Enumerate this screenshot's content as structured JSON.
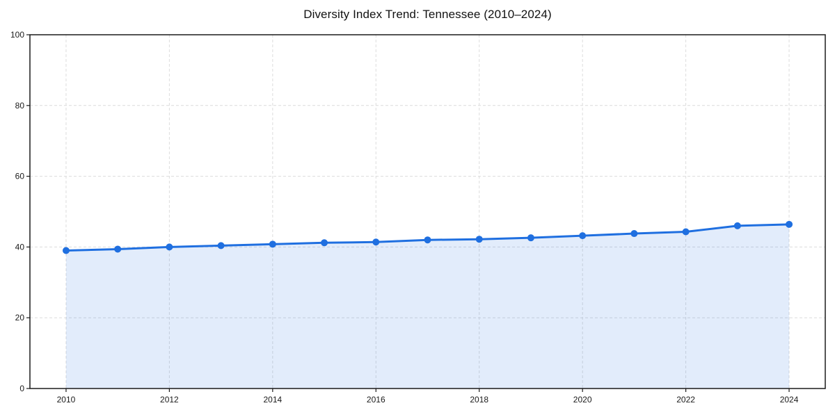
{
  "chart_data": {
    "type": "line",
    "title": "Diversity Index Trend: Tennessee (2010–2024)",
    "xlabel": "",
    "ylabel": "",
    "x": [
      2010,
      2011,
      2012,
      2013,
      2014,
      2015,
      2016,
      2017,
      2018,
      2019,
      2020,
      2021,
      2022,
      2023,
      2024
    ],
    "series": [
      {
        "name": "Diversity Index",
        "values": [
          39.0,
          39.4,
          40.0,
          40.4,
          40.8,
          41.2,
          41.4,
          42.0,
          42.2,
          42.6,
          43.2,
          43.8,
          44.3,
          46.0,
          46.4
        ]
      }
    ],
    "xticks": [
      2010,
      2012,
      2014,
      2016,
      2018,
      2020,
      2022,
      2024
    ],
    "yticks": [
      0,
      20,
      40,
      60,
      80,
      100
    ],
    "xlim": [
      2009.3,
      2024.7
    ],
    "ylim": [
      0,
      100
    ],
    "grid": true,
    "grid_style": "dashed",
    "legend_position": "none",
    "area_fill": true,
    "style": {
      "line_color": "#1f6fe0",
      "marker_color": "#1f6fe0",
      "fill_color": "rgba(31, 111, 224, 0.13)",
      "grid_color": "#dcdcdc",
      "axis_color": "#1a1a1a",
      "text_color": "#1a1a1a",
      "background": "#ffffff"
    },
    "marker_radius": 5,
    "line_width": 3
  }
}
